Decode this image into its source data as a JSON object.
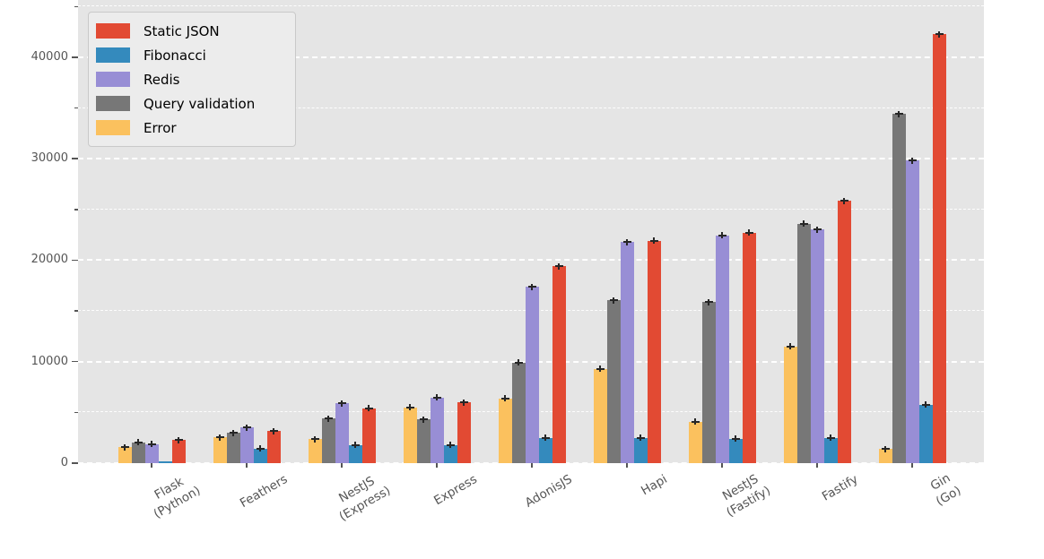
{
  "chart_data": {
    "type": "bar",
    "title": "",
    "xlabel": "",
    "ylabel": "",
    "categories": [
      "Flask\n(Python)",
      "Feathers",
      "NestJS\n(Express)",
      "Express",
      "AdonisJS",
      "Hapi",
      "NestJS\n(Fastify)",
      "Fastify",
      "Gin\n(Go)"
    ],
    "series": [
      {
        "name": "Static JSON",
        "color": "#E24A33",
        "values": [
          2270,
          3150,
          5400,
          5970,
          19400,
          21900,
          22690,
          25850,
          42250
        ]
      },
      {
        "name": "Fibonacci",
        "color": "#348ABD",
        "values": [
          150,
          1420,
          1780,
          1780,
          2480,
          2480,
          2390,
          2500,
          5770
        ]
      },
      {
        "name": "Redis",
        "color": "#988ED5",
        "values": [
          1880,
          3530,
          5910,
          6450,
          17350,
          21800,
          22450,
          23040,
          29800
        ]
      },
      {
        "name": "Query validation",
        "color": "#777777",
        "values": [
          2060,
          2980,
          4380,
          4320,
          9900,
          16050,
          15850,
          23600,
          34400
        ]
      },
      {
        "name": "Error",
        "color": "#FBC15E",
        "values": [
          1570,
          2540,
          2370,
          5510,
          6400,
          9300,
          4090,
          11500,
          1390
        ]
      }
    ],
    "bar_order": [
      "Error",
      "Query validation",
      "Redis",
      "Fibonacci",
      "Static JSON"
    ],
    "y_ticks": [
      0,
      10000,
      20000,
      30000,
      40000
    ],
    "y_minor_ticks": [
      5000,
      15000,
      25000,
      35000,
      45000
    ],
    "ylim": [
      0,
      45600
    ],
    "legend_position": "upper left",
    "grid": "white dashed gridlines on gray plot background",
    "has_error_bars": true,
    "background_color": "#E5E5E5",
    "grid_color": "#FFFFFF",
    "tick_label_color": "#555555"
  }
}
